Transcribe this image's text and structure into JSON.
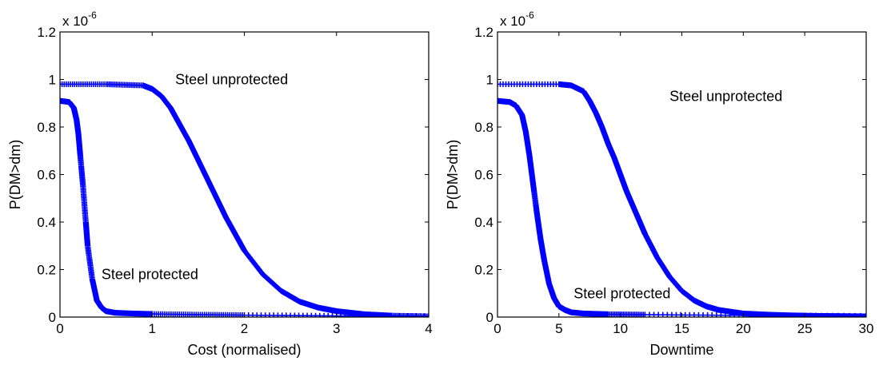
{
  "chart_data": [
    {
      "type": "line",
      "xlabel": "Cost (normalised)",
      "ylabel": "P(DM>dm)",
      "y_multiplier_base": "x 10",
      "y_multiplier_exp": "-6",
      "xlim": [
        0,
        4
      ],
      "ylim": [
        0,
        1.2
      ],
      "xticks": [
        0,
        1,
        2,
        3,
        4
      ],
      "xtick_labels": [
        "0",
        "1",
        "2",
        "3",
        "4"
      ],
      "yticks": [
        0,
        0.2,
        0.4,
        0.6,
        0.8,
        1,
        1.2
      ],
      "ytick_labels": [
        "0",
        "0.2",
        "0.4",
        "0.6",
        "0.8",
        "1",
        "1.2"
      ],
      "grid": false,
      "marker": "+",
      "color": "#0000ff",
      "series": [
        {
          "name": "Steel unprotected",
          "x": [
            0,
            0.5,
            0.9,
            1.0,
            1.1,
            1.2,
            1.3,
            1.4,
            1.5,
            1.6,
            1.7,
            1.8,
            1.9,
            2.0,
            2.2,
            2.4,
            2.6,
            2.8,
            3.0,
            3.3,
            3.6,
            4.0
          ],
          "y": [
            0.98,
            0.98,
            0.975,
            0.96,
            0.93,
            0.88,
            0.81,
            0.74,
            0.66,
            0.58,
            0.5,
            0.42,
            0.35,
            0.28,
            0.18,
            0.11,
            0.065,
            0.04,
            0.025,
            0.012,
            0.006,
            0.003
          ]
        },
        {
          "name": "Steel protected",
          "x": [
            0,
            0.1,
            0.15,
            0.18,
            0.2,
            0.22,
            0.25,
            0.28,
            0.3,
            0.35,
            0.4,
            0.45,
            0.5,
            0.6,
            0.8,
            1.0,
            1.5,
            2.0,
            3.0,
            4.0
          ],
          "y": [
            0.91,
            0.905,
            0.88,
            0.83,
            0.77,
            0.68,
            0.55,
            0.4,
            0.3,
            0.16,
            0.07,
            0.04,
            0.025,
            0.018,
            0.015,
            0.013,
            0.01,
            0.008,
            0.005,
            0.004
          ]
        }
      ],
      "annotations": [
        {
          "text": "Steel unprotected",
          "x": 1.25,
          "y": 1.0
        },
        {
          "text": "Steel protected",
          "x": 0.45,
          "y": 0.18
        }
      ]
    },
    {
      "type": "line",
      "xlabel": "Downtime",
      "ylabel": "P(DM>dm)",
      "y_multiplier_base": "x 10",
      "y_multiplier_exp": "-6",
      "xlim": [
        0,
        30
      ],
      "ylim": [
        0,
        1.2
      ],
      "xticks": [
        0,
        5,
        10,
        15,
        20,
        25,
        30
      ],
      "xtick_labels": [
        "0",
        "5",
        "10",
        "15",
        "20",
        "25",
        "30"
      ],
      "yticks": [
        0,
        0.2,
        0.4,
        0.6,
        0.8,
        1,
        1.2
      ],
      "ytick_labels": [
        "0",
        "0.2",
        "0.4",
        "0.6",
        "0.8",
        "1",
        "1.2"
      ],
      "grid": false,
      "marker": "+",
      "color": "#0000ff",
      "series": [
        {
          "name": "Steel unprotected",
          "x": [
            0,
            5,
            6,
            7,
            7.5,
            8,
            8.5,
            9,
            9.5,
            10,
            10.5,
            11,
            11.5,
            12,
            13,
            14,
            15,
            16,
            17,
            18,
            20,
            22,
            24,
            26,
            28,
            30
          ],
          "y": [
            0.98,
            0.98,
            0.975,
            0.95,
            0.91,
            0.86,
            0.8,
            0.73,
            0.67,
            0.6,
            0.53,
            0.47,
            0.41,
            0.35,
            0.25,
            0.17,
            0.11,
            0.07,
            0.045,
            0.03,
            0.015,
            0.01,
            0.007,
            0.005,
            0.004,
            0.003
          ]
        },
        {
          "name": "Steel protected",
          "x": [
            0,
            1,
            1.5,
            2,
            2.3,
            2.6,
            2.9,
            3.2,
            3.5,
            3.8,
            4.2,
            4.6,
            5,
            5.5,
            6,
            7,
            9,
            12,
            20,
            30
          ],
          "y": [
            0.91,
            0.905,
            0.89,
            0.85,
            0.78,
            0.68,
            0.56,
            0.44,
            0.33,
            0.24,
            0.14,
            0.08,
            0.045,
            0.03,
            0.02,
            0.015,
            0.012,
            0.01,
            0.007,
            0.005
          ]
        }
      ],
      "annotations": [
        {
          "text": "Steel unprotected",
          "x": 14,
          "y": 0.93
        },
        {
          "text": "Steel protected",
          "x": 6.2,
          "y": 0.1
        }
      ]
    }
  ]
}
